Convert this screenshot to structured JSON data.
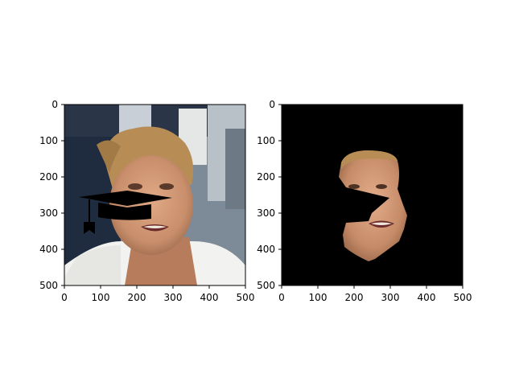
{
  "chart_data": [
    {
      "type": "image",
      "panel": "left",
      "content": "photo of a woman's face with a black graduation-cap icon overlay",
      "xlim": [
        0,
        500
      ],
      "ylim": [
        500,
        0
      ],
      "x_ticks": [
        0,
        100,
        200,
        300,
        400,
        500
      ],
      "y_ticks": [
        0,
        100,
        200,
        300,
        400,
        500
      ],
      "overlay": "graduation-cap-icon"
    },
    {
      "type": "image",
      "panel": "right",
      "content": "segmentation result: face region kept on black background, wedge-shaped cutout where the cap was",
      "xlim": [
        0,
        500
      ],
      "ylim": [
        500,
        0
      ],
      "x_ticks": [
        0,
        100,
        200,
        300,
        400,
        500
      ],
      "y_ticks": [
        0,
        100,
        200,
        300,
        400,
        500
      ],
      "background": "#000000"
    }
  ],
  "colors": {
    "background": "#ffffff",
    "mask": "#000000",
    "skin": "#c98f6c",
    "hair": "#b88d55",
    "shirt": "#f2f2f0",
    "backdrop_dark": "#1f2b3e"
  }
}
